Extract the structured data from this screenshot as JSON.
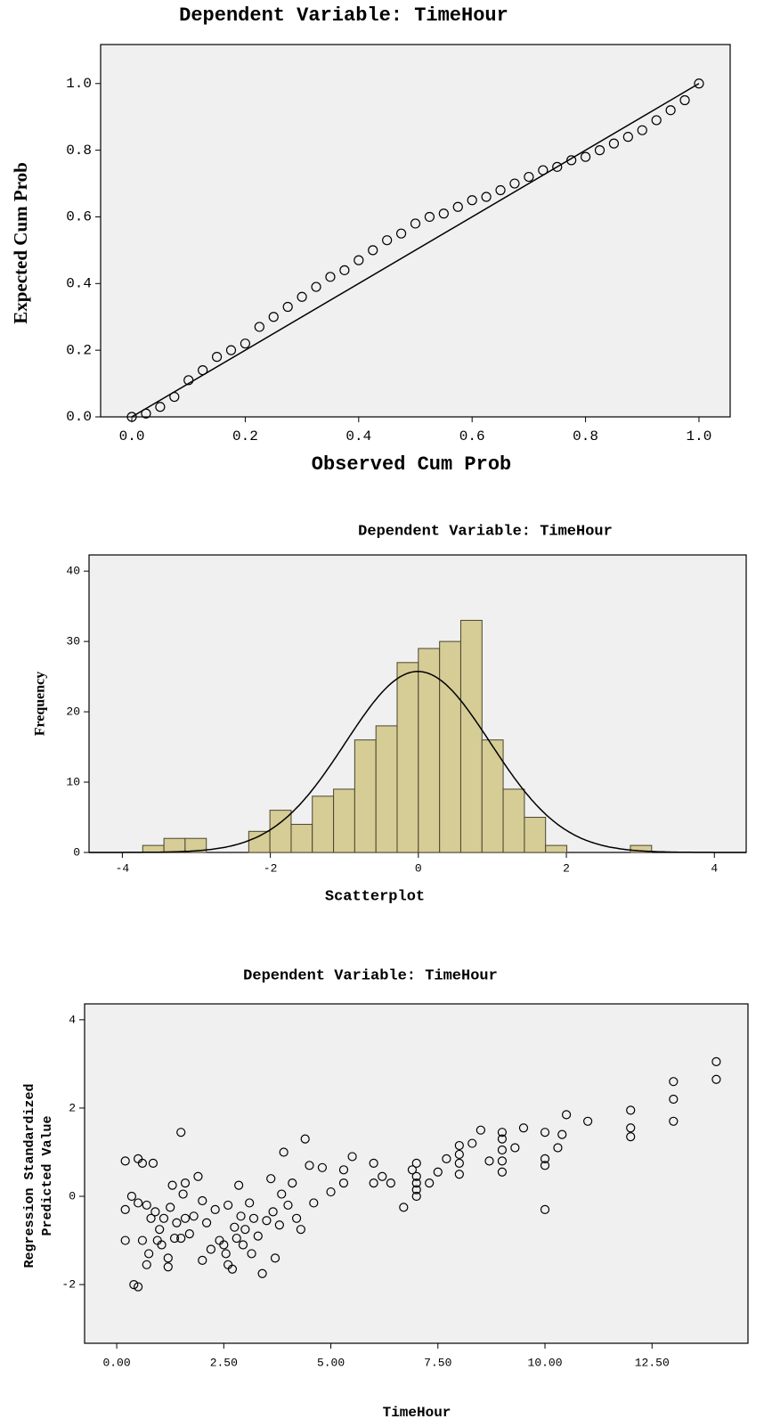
{
  "chart_data": [
    {
      "type": "scatter",
      "title": "Dependent Variable: TimeHour",
      "xlabel": "Observed Cum Prob",
      "ylabel": "Expected Cum Prob",
      "diagonal": true,
      "color": "#000000",
      "x": [
        0,
        0.025,
        0.05,
        0.075,
        0.1,
        0.125,
        0.15,
        0.175,
        0.2,
        0.225,
        0.25,
        0.275,
        0.3,
        0.325,
        0.35,
        0.375,
        0.4,
        0.425,
        0.45,
        0.475,
        0.5,
        0.525,
        0.55,
        0.575,
        0.6,
        0.625,
        0.65,
        0.675,
        0.7,
        0.725,
        0.75,
        0.775,
        0.8,
        0.825,
        0.85,
        0.875,
        0.9,
        0.925,
        0.95,
        0.975,
        1.0
      ],
      "values": [
        0,
        0.01,
        0.03,
        0.06,
        0.11,
        0.14,
        0.18,
        0.2,
        0.22,
        0.27,
        0.3,
        0.33,
        0.36,
        0.39,
        0.42,
        0.44,
        0.47,
        0.5,
        0.53,
        0.55,
        0.58,
        0.6,
        0.61,
        0.63,
        0.65,
        0.66,
        0.68,
        0.7,
        0.72,
        0.74,
        0.75,
        0.77,
        0.78,
        0.8,
        0.82,
        0.84,
        0.86,
        0.89,
        0.92,
        0.95,
        1.0
      ],
      "xlim": [
        -0.055,
        1.055
      ],
      "ylim": [
        0,
        1.117
      ],
      "xticks": [
        {
          "value": 0,
          "label": "0.0"
        },
        {
          "value": 0.2,
          "label": "0.2"
        },
        {
          "value": 0.4,
          "label": "0.4"
        },
        {
          "value": 0.6,
          "label": "0.6"
        },
        {
          "value": 0.8,
          "label": "0.8"
        },
        {
          "value": 1,
          "label": "1.0"
        }
      ],
      "yticks": [
        {
          "value": 0,
          "label": "0.0"
        },
        {
          "value": 0.2,
          "label": "0.2"
        },
        {
          "value": 0.4,
          "label": "0.4"
        },
        {
          "value": 0.6,
          "label": "0.6"
        },
        {
          "value": 0.8,
          "label": "0.8"
        },
        {
          "value": 1,
          "label": "1.0"
        }
      ]
    },
    {
      "type": "histogram",
      "title": "Dependent Variable: TimeHour",
      "ylabel": "Frequency",
      "color": "#d6cc96",
      "normal_curve": true,
      "bins": [
        -3.725,
        -3.438,
        -3.152,
        -2.865,
        -2.579,
        -2.292,
        -2.006,
        -1.719,
        -1.433,
        -1.146,
        -0.86,
        -0.573,
        -0.287,
        0,
        0.287,
        0.573,
        0.86,
        1.146,
        1.433,
        1.719,
        2.006,
        2.292,
        2.579,
        2.865,
        3.152
      ],
      "values": [
        1,
        2,
        2,
        0,
        0,
        3,
        6,
        4,
        8,
        9,
        16,
        18,
        27,
        29,
        30,
        33,
        16,
        9,
        5,
        1,
        0,
        0,
        0,
        1
      ],
      "xlim": [
        -4.45,
        4.43
      ],
      "ylim": [
        0,
        42.3
      ],
      "xticks": [
        -4,
        -2,
        0,
        2,
        4
      ],
      "yticks": [
        0,
        10,
        20,
        30,
        40
      ]
    },
    {
      "type": "scatter",
      "title": "Scatterplot",
      "subtitle": "Dependent Variable: TimeHour",
      "xlabel": "TimeHour",
      "ylabel": [
        "Regression Standardized",
        "Predicted Value"
      ],
      "color": "#000000",
      "x": [
        0.2,
        0.2,
        0.2,
        0.35,
        0.4,
        0.5,
        0.5,
        0.5,
        0.6,
        0.6,
        0.7,
        0.7,
        0.75,
        0.8,
        0.85,
        0.9,
        0.95,
        1.0,
        1.05,
        1.1,
        1.2,
        1.2,
        1.25,
        1.3,
        1.35,
        1.4,
        1.5,
        1.5,
        1.55,
        1.6,
        1.6,
        1.7,
        1.8,
        1.9,
        2.0,
        2.0,
        2.1,
        2.2,
        2.3,
        2.4,
        2.5,
        2.55,
        2.6,
        2.6,
        2.7,
        2.75,
        2.8,
        2.85,
        2.9,
        2.95,
        3.0,
        3.1,
        3.15,
        3.2,
        3.3,
        3.4,
        3.5,
        3.6,
        3.65,
        3.7,
        3.8,
        3.85,
        3.9,
        4.0,
        4.1,
        4.2,
        4.3,
        4.4,
        4.5,
        4.6,
        4.8,
        5.0,
        5.3,
        5.3,
        5.5,
        6.0,
        6.0,
        6.2,
        6.4,
        6.7,
        6.9,
        7.0,
        7.0,
        7.0,
        7.0,
        7.0,
        7.3,
        7.5,
        7.7,
        8.0,
        8.0,
        8.0,
        8.0,
        8.3,
        8.5,
        8.7,
        9.0,
        9.0,
        9.0,
        9.0,
        9.0,
        9.3,
        9.5,
        10.0,
        10.0,
        10.0,
        10.0,
        10.3,
        10.4,
        10.5,
        11.0,
        12.0,
        12.0,
        12.0,
        13.0,
        13.0,
        13.0,
        14.0,
        14.0
      ],
      "values": [
        0.8,
        -0.3,
        -1.0,
        0,
        -2.0,
        -2.05,
        0.85,
        -0.15,
        0.75,
        -1.0,
        -0.2,
        -1.55,
        -1.3,
        -0.5,
        0.75,
        -0.35,
        -1.0,
        -0.75,
        -1.1,
        -0.5,
        -1.4,
        -1.6,
        -0.25,
        0.25,
        -0.95,
        -0.6,
        1.45,
        -0.95,
        0.05,
        -0.5,
        0.3,
        -0.85,
        -0.45,
        0.45,
        -1.45,
        -0.1,
        -0.6,
        -1.2,
        -0.3,
        -1.0,
        -1.1,
        -1.3,
        -0.2,
        -1.55,
        -1.65,
        -0.7,
        -0.95,
        0.25,
        -0.45,
        -1.1,
        -0.75,
        -0.15,
        -1.3,
        -0.5,
        -0.9,
        -1.75,
        -0.55,
        0.4,
        -0.35,
        -1.4,
        -0.65,
        0.05,
        1.0,
        -0.2,
        0.3,
        -0.5,
        -0.75,
        1.3,
        0.7,
        -0.15,
        0.65,
        0.1,
        0.3,
        0.6,
        0.9,
        0.75,
        0.3,
        0.45,
        0.3,
        -0.25,
        0.6,
        0,
        0.15,
        0.3,
        0.45,
        0.75,
        0.3,
        0.55,
        0.85,
        0.5,
        0.75,
        0.95,
        1.15,
        1.2,
        1.5,
        0.8,
        0.55,
        0.8,
        1.05,
        1.3,
        1.45,
        1.1,
        1.55,
        -0.3,
        0.7,
        0.85,
        1.45,
        1.1,
        1.4,
        1.85,
        1.7,
        1.35,
        1.55,
        1.95,
        1.7,
        2.2,
        2.6,
        2.65,
        3.05
      ],
      "xlim": [
        -0.75,
        14.74
      ],
      "ylim": [
        -3.33,
        4.36
      ],
      "xticks": [
        {
          "value": 0,
          "label": "0.00"
        },
        {
          "value": 2.5,
          "label": "2.50"
        },
        {
          "value": 5,
          "label": "5.00"
        },
        {
          "value": 7.5,
          "label": "7.50"
        },
        {
          "value": 10,
          "label": "10.00"
        },
        {
          "value": 12.5,
          "label": "12.50"
        }
      ],
      "yticks": [
        -2,
        0,
        2,
        4
      ]
    }
  ]
}
